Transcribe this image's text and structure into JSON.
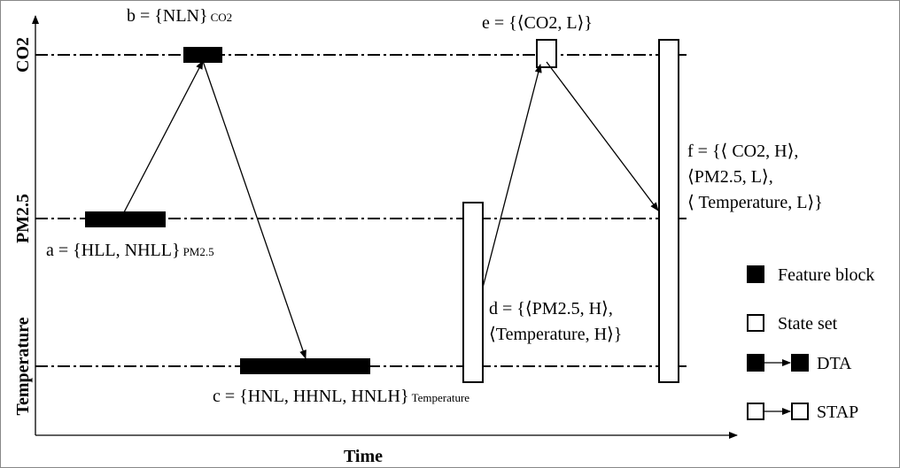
{
  "axes": {
    "x_label": "Time",
    "y_labels": [
      "CO2",
      "PM2.5",
      "Temperature"
    ]
  },
  "annotations": {
    "a": {
      "text": "a = {HLL, NHLL}",
      "subscript": "PM2.5"
    },
    "b": {
      "text": "b = {NLN}",
      "subscript": "CO2"
    },
    "c": {
      "text": "c = {HNL, HHNL, HNLH}",
      "subscript": "Temperature"
    },
    "d": {
      "lines": [
        "d = {⟨PM2.5, H⟩,",
        "⟨Temperature, H⟩}"
      ]
    },
    "e": {
      "text": "e = {⟨CO2, L⟩}"
    },
    "f": {
      "lines": [
        "f = {⟨ CO2, H⟩,",
        "⟨PM2.5, L⟩,",
        "⟨ Temperature, L⟩}"
      ]
    }
  },
  "legend": [
    "Feature block",
    "State set",
    "DTA",
    "STAP"
  ]
}
